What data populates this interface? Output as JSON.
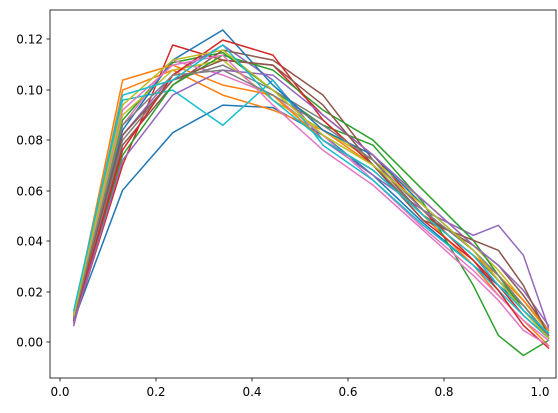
{
  "chart_data": {
    "type": "line",
    "title": "",
    "xlabel": "",
    "ylabel": "",
    "xlim": [
      -0.02,
      0.99
    ],
    "ylim": [
      -0.015,
      0.132
    ],
    "grid": false,
    "legend": "none",
    "x_ticks": [
      0.0,
      0.2,
      0.4,
      0.6,
      0.8,
      1.0
    ],
    "x_tick_labels": [
      "0.0",
      "0.2",
      "0.4",
      "0.6",
      "0.8",
      "1.0"
    ],
    "y_ticks": [
      0.0,
      0.02,
      0.04,
      0.06,
      0.08,
      0.1,
      0.12
    ],
    "y_tick_labels": [
      "0.00",
      "0.02",
      "0.04",
      "0.06",
      "0.08",
      "0.10",
      "0.12"
    ],
    "x": [
      0.0275,
      0.125,
      0.225,
      0.325,
      0.425,
      0.525,
      0.625,
      0.725,
      0.825,
      0.875,
      0.925,
      0.975
    ],
    "series": [
      {
        "color": "#1f77b4",
        "values": [
          0.008,
          0.06,
          0.083,
          0.094,
          0.093,
          0.082,
          0.066,
          0.047,
          0.03,
          0.022,
          0.014,
          0.002
        ]
      },
      {
        "color": "#ff7f0e",
        "values": [
          0.009,
          0.1,
          0.108,
          0.098,
          0.092,
          0.084,
          0.07,
          0.05,
          0.03,
          0.018,
          0.008,
          -0.002
        ]
      },
      {
        "color": "#2ca02c",
        "values": [
          0.01,
          0.088,
          0.111,
          0.115,
          0.1,
          0.086,
          0.078,
          0.055,
          0.022,
          0.002,
          -0.006,
          0.0
        ]
      },
      {
        "color": "#d62728",
        "values": [
          0.007,
          0.07,
          0.118,
          0.112,
          0.11,
          0.09,
          0.074,
          0.052,
          0.032,
          0.022,
          0.01,
          0.001
        ]
      },
      {
        "color": "#9467bd",
        "values": [
          0.006,
          0.082,
          0.106,
          0.118,
          0.104,
          0.08,
          0.066,
          0.052,
          0.042,
          0.046,
          0.034,
          0.005
        ]
      },
      {
        "color": "#8c564b",
        "values": [
          0.008,
          0.078,
          0.102,
          0.116,
          0.112,
          0.098,
          0.072,
          0.05,
          0.038,
          0.03,
          0.018,
          0.004
        ]
      },
      {
        "color": "#e377c2",
        "values": [
          0.009,
          0.086,
          0.112,
          0.106,
          0.098,
          0.082,
          0.064,
          0.045,
          0.028,
          0.018,
          0.008,
          0.0
        ]
      },
      {
        "color": "#7f7f7f",
        "values": [
          0.008,
          0.08,
          0.104,
          0.11,
          0.1,
          0.088,
          0.07,
          0.05,
          0.034,
          0.024,
          0.014,
          0.002
        ]
      },
      {
        "color": "#bcbd22",
        "values": [
          0.01,
          0.09,
          0.108,
          0.112,
          0.096,
          0.084,
          0.072,
          0.056,
          0.038,
          0.028,
          0.016,
          0.003
        ]
      },
      {
        "color": "#17becf",
        "values": [
          0.011,
          0.096,
          0.1,
          0.086,
          0.104,
          0.078,
          0.064,
          0.046,
          0.03,
          0.02,
          0.01,
          0.001
        ]
      },
      {
        "color": "#1f77b4",
        "values": [
          0.009,
          0.084,
          0.112,
          0.124,
          0.102,
          0.084,
          0.074,
          0.054,
          0.036,
          0.024,
          0.012,
          0.002
        ]
      },
      {
        "color": "#ff7f0e",
        "values": [
          0.01,
          0.104,
          0.11,
          0.102,
          0.098,
          0.08,
          0.068,
          0.05,
          0.034,
          0.026,
          0.016,
          0.004
        ]
      },
      {
        "color": "#2ca02c",
        "values": [
          0.008,
          0.074,
          0.102,
          0.114,
          0.108,
          0.092,
          0.08,
          0.06,
          0.04,
          0.026,
          0.012,
          0.001
        ]
      },
      {
        "color": "#d62728",
        "values": [
          0.008,
          0.076,
          0.106,
          0.12,
          0.114,
          0.088,
          0.07,
          0.048,
          0.032,
          0.02,
          0.006,
          -0.003
        ]
      },
      {
        "color": "#9467bd",
        "values": [
          0.007,
          0.072,
          0.098,
          0.108,
          0.106,
          0.09,
          0.074,
          0.056,
          0.038,
          0.03,
          0.02,
          0.006
        ]
      },
      {
        "color": "#8c564b",
        "values": [
          0.009,
          0.082,
          0.104,
          0.112,
          0.11,
          0.094,
          0.07,
          0.048,
          0.04,
          0.036,
          0.022,
          0.002
        ]
      },
      {
        "color": "#e377c2",
        "values": [
          0.01,
          0.092,
          0.11,
          0.114,
          0.094,
          0.076,
          0.062,
          0.044,
          0.026,
          0.016,
          0.004,
          -0.002
        ]
      },
      {
        "color": "#7f7f7f",
        "values": [
          0.009,
          0.086,
          0.106,
          0.108,
          0.098,
          0.086,
          0.072,
          0.052,
          0.036,
          0.026,
          0.014,
          0.002
        ]
      },
      {
        "color": "#bcbd22",
        "values": [
          0.01,
          0.094,
          0.112,
          0.116,
          0.1,
          0.082,
          0.07,
          0.054,
          0.036,
          0.024,
          0.012,
          0.001
        ]
      },
      {
        "color": "#17becf",
        "values": [
          0.012,
          0.098,
          0.104,
          0.118,
          0.096,
          0.08,
          0.068,
          0.05,
          0.034,
          0.022,
          0.012,
          0.003
        ]
      }
    ]
  }
}
